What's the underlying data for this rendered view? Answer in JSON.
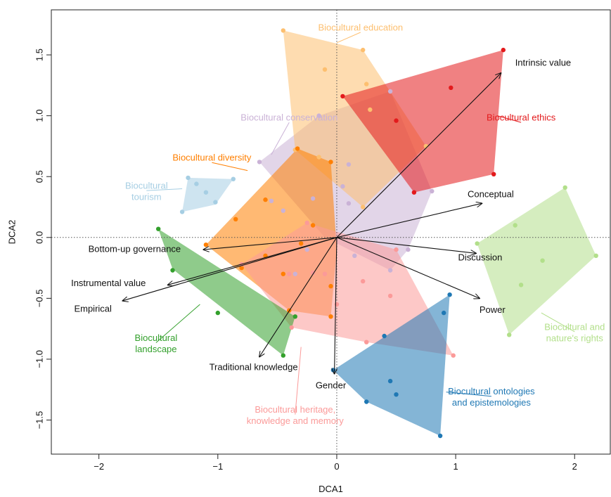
{
  "chart_data": {
    "type": "scatter",
    "title": "",
    "xlabel": "DCA1",
    "ylabel": "DCA2",
    "xlim": [
      -2.4,
      2.3
    ],
    "ylim": [
      -1.78,
      1.87
    ],
    "xticks": [
      -2,
      -1,
      0,
      1,
      2
    ],
    "xtick_labels": [
      "−2",
      "−1",
      "0",
      "1",
      "2"
    ],
    "yticks": [
      -1.5,
      -1.0,
      -0.5,
      0.0,
      0.5,
      1.0,
      1.5
    ],
    "ytick_labels": [
      "−1.5",
      "−1.0",
      "−0.5",
      "0.0",
      "0.5",
      "1.0",
      "1.5"
    ],
    "origin_dotted_lines": true,
    "groups": [
      {
        "name": "Biocultural conservation",
        "color": "#cab2d6",
        "hull": [
          [
            -0.65,
            0.62
          ],
          [
            -0.15,
            1.0
          ],
          [
            0.45,
            1.2
          ],
          [
            0.8,
            0.38
          ],
          [
            0.6,
            -0.1
          ],
          [
            0.45,
            -0.27
          ],
          [
            -0.1,
            0.0
          ]
        ],
        "points": [
          [
            -0.65,
            0.62
          ],
          [
            -0.15,
            1.0
          ],
          [
            0.45,
            1.2
          ],
          [
            0.8,
            0.38
          ],
          [
            0.6,
            -0.1
          ],
          [
            0.45,
            -0.27
          ],
          [
            0.1,
            0.6
          ],
          [
            0.05,
            0.42
          ],
          [
            -0.2,
            0.32
          ],
          [
            -0.55,
            0.3
          ],
          [
            -0.45,
            0.22
          ],
          [
            0.1,
            0.28
          ],
          [
            0.15,
            -0.15
          ],
          [
            -0.35,
            -0.3
          ],
          [
            -0.25,
            -0.1
          ]
        ],
        "label_lines": [
          "Biocultural conservation"
        ],
        "label_anchor": [
          -0.4,
          0.98
        ],
        "label_leader_to": [
          -0.55,
          0.68
        ]
      },
      {
        "name": "Biocultural education",
        "color": "#fdbf6f",
        "hull": [
          [
            -0.45,
            1.7
          ],
          [
            0.22,
            1.54
          ],
          [
            0.75,
            0.75
          ],
          [
            0.22,
            0.25
          ],
          [
            -0.35,
            0.72
          ]
        ],
        "points": [
          [
            -0.45,
            1.7
          ],
          [
            0.22,
            1.54
          ],
          [
            -0.1,
            1.38
          ],
          [
            0.25,
            1.26
          ],
          [
            0.28,
            1.05
          ],
          [
            0.75,
            0.75
          ],
          [
            0.22,
            0.25
          ],
          [
            -0.35,
            0.72
          ],
          [
            -0.15,
            0.66
          ]
        ],
        "label_lines": [
          "Biocultural education"
        ],
        "label_anchor": [
          0.2,
          1.72
        ],
        "label_leader_to": [
          0.0,
          1.6
        ]
      },
      {
        "name": "Biocultural ethics",
        "color": "#e31a1c",
        "hull": [
          [
            0.05,
            1.16
          ],
          [
            1.4,
            1.54
          ],
          [
            1.32,
            0.52
          ],
          [
            0.65,
            0.37
          ]
        ],
        "points": [
          [
            0.05,
            1.16
          ],
          [
            1.4,
            1.54
          ],
          [
            0.96,
            1.23
          ],
          [
            0.5,
            0.96
          ],
          [
            1.32,
            0.52
          ],
          [
            0.65,
            0.37
          ]
        ],
        "label_lines": [
          "Biocultural ethics"
        ],
        "label_anchor": [
          1.55,
          0.98
        ],
        "label_leader_to": [
          1.35,
          1.0
        ]
      },
      {
        "name": "Biocultural diversity",
        "color": "#ff7f00",
        "hull": [
          [
            -1.1,
            -0.06
          ],
          [
            -0.33,
            0.73
          ],
          [
            -0.05,
            0.62
          ],
          [
            0.0,
            -0.1
          ],
          [
            -0.05,
            -0.65
          ],
          [
            -0.4,
            -0.6
          ]
        ],
        "points": [
          [
            -1.1,
            -0.06
          ],
          [
            -0.33,
            0.73
          ],
          [
            -0.05,
            0.62
          ],
          [
            -0.6,
            0.31
          ],
          [
            -0.85,
            0.15
          ],
          [
            -0.2,
            0.1
          ],
          [
            -0.3,
            -0.05
          ],
          [
            -0.6,
            -0.15
          ],
          [
            -0.8,
            -0.25
          ],
          [
            -0.45,
            -0.3
          ],
          [
            -0.05,
            -0.4
          ],
          [
            -0.05,
            -0.65
          ],
          [
            -0.4,
            -0.6
          ]
        ],
        "label_lines": [
          "Biocultural diversity"
        ],
        "label_anchor": [
          -1.05,
          0.65
        ],
        "label_leader_to": [
          -0.75,
          0.55
        ]
      },
      {
        "name": "Biocultural tourism",
        "color": "#a6cee3",
        "hull": [
          [
            -1.25,
            0.49
          ],
          [
            -0.87,
            0.48
          ],
          [
            -1.02,
            0.27
          ],
          [
            -1.3,
            0.21
          ]
        ],
        "points": [
          [
            -1.25,
            0.49
          ],
          [
            -1.18,
            0.44
          ],
          [
            -0.87,
            0.48
          ],
          [
            -1.1,
            0.37
          ],
          [
            -1.02,
            0.29
          ],
          [
            -1.3,
            0.21
          ]
        ],
        "label_lines": [
          "Biocultural",
          "tourism"
        ],
        "label_anchor": [
          -1.6,
          0.42
        ],
        "label_leader_to": [
          -1.3,
          0.4
        ]
      },
      {
        "name": "Biocultural heritage, knowledge and memory",
        "color": "#fb9a99",
        "hull": [
          [
            -0.8,
            -0.22
          ],
          [
            -0.25,
            0.12
          ],
          [
            0.5,
            -0.1
          ],
          [
            0.98,
            -0.97
          ],
          [
            0.25,
            -0.86
          ],
          [
            -0.38,
            -0.74
          ]
        ],
        "points": [
          [
            -0.8,
            -0.22
          ],
          [
            -0.25,
            0.12
          ],
          [
            0.5,
            -0.1
          ],
          [
            0.98,
            -0.97
          ],
          [
            0.25,
            -0.86
          ],
          [
            -0.38,
            -0.74
          ],
          [
            -0.4,
            -0.3
          ],
          [
            -0.2,
            -0.29
          ],
          [
            0.45,
            -0.48
          ],
          [
            0.22,
            -0.36
          ],
          [
            0.0,
            -0.55
          ],
          [
            -0.1,
            -0.3
          ]
        ],
        "label_lines": [
          "Biocultural heritage,",
          "knowledge and memory"
        ],
        "label_anchor": [
          -0.35,
          -1.42
        ],
        "label_leader_to": [
          -0.3,
          -0.9
        ]
      },
      {
        "name": "Biocultural landscape",
        "color": "#33a02c",
        "hull": [
          [
            -1.5,
            0.07
          ],
          [
            -0.35,
            -0.65
          ],
          [
            -0.45,
            -0.97
          ],
          [
            -1.38,
            -0.26
          ]
        ],
        "points": [
          [
            -1.5,
            0.07
          ],
          [
            -1.38,
            -0.27
          ],
          [
            -1.0,
            -0.62
          ],
          [
            -0.35,
            -0.65
          ],
          [
            -0.45,
            -0.97
          ]
        ],
        "label_lines": [
          "Biocultural",
          "landscape"
        ],
        "label_anchor": [
          -1.52,
          -0.83
        ],
        "label_leader_to": [
          -1.15,
          -0.55
        ]
      },
      {
        "name": "Biocultural ontologies and epistemologies",
        "color": "#1f78b4",
        "hull": [
          [
            -0.03,
            -1.09
          ],
          [
            0.95,
            -0.47
          ],
          [
            0.87,
            -1.63
          ],
          [
            0.25,
            -1.35
          ]
        ],
        "points": [
          [
            -0.03,
            -1.09
          ],
          [
            0.95,
            -0.47
          ],
          [
            0.9,
            -0.62
          ],
          [
            0.4,
            -0.81
          ],
          [
            0.45,
            -1.18
          ],
          [
            0.5,
            -1.29
          ],
          [
            0.25,
            -1.35
          ],
          [
            0.87,
            -1.63
          ]
        ],
        "label_lines": [
          "Biocultural ontologies",
          "and epistemologies"
        ],
        "label_anchor": [
          1.3,
          -1.27
        ],
        "label_leader_to": [
          0.92,
          -1.27
        ]
      },
      {
        "name": "Biocultural and nature's rights",
        "color": "#b2df8a",
        "hull": [
          [
            1.18,
            -0.05
          ],
          [
            1.92,
            0.41
          ],
          [
            2.18,
            -0.15
          ],
          [
            1.45,
            -0.8
          ]
        ],
        "points": [
          [
            1.18,
            -0.05
          ],
          [
            1.92,
            0.41
          ],
          [
            2.18,
            -0.15
          ],
          [
            1.45,
            -0.8
          ],
          [
            1.5,
            0.1
          ],
          [
            1.73,
            -0.19
          ],
          [
            1.55,
            -0.39
          ]
        ],
        "label_lines": [
          "Biocultural and",
          "nature's rights"
        ],
        "label_anchor": [
          2.0,
          -0.74
        ],
        "label_leader_to": [
          1.72,
          -0.62
        ]
      }
    ],
    "vectors": [
      {
        "name": "Intrinsic value",
        "end": [
          1.38,
          1.35
        ],
        "label_at": [
          1.5,
          1.43
        ],
        "anchor": "start"
      },
      {
        "name": "Conceptual",
        "end": [
          1.22,
          0.28
        ],
        "label_at": [
          1.1,
          0.35
        ],
        "anchor": "start"
      },
      {
        "name": "Discussion",
        "end": [
          1.17,
          -0.13
        ],
        "label_at": [
          1.02,
          -0.17
        ],
        "anchor": "start"
      },
      {
        "name": "Power",
        "end": [
          1.2,
          -0.5
        ],
        "label_at": [
          1.2,
          -0.6
        ],
        "anchor": "start"
      },
      {
        "name": "Gender",
        "end": [
          -0.02,
          -1.12
        ],
        "label_at": [
          -0.05,
          -1.22
        ],
        "anchor": "middle"
      },
      {
        "name": "Traditional knowledge",
        "end": [
          -0.65,
          -0.98
        ],
        "label_at": [
          -0.7,
          -1.07
        ],
        "anchor": "middle"
      },
      {
        "name": "Empirical",
        "end": [
          -1.8,
          -0.52
        ],
        "label_at": [
          -2.05,
          -0.59
        ],
        "anchor": "middle"
      },
      {
        "name": "Instrumental value",
        "end": [
          -1.42,
          -0.39
        ],
        "label_at": [
          -1.92,
          -0.38
        ],
        "anchor": "middle"
      },
      {
        "name": "Bottom-up governance",
        "end": [
          -1.12,
          -0.1
        ],
        "label_at": [
          -1.7,
          -0.1
        ],
        "anchor": "middle"
      }
    ]
  }
}
